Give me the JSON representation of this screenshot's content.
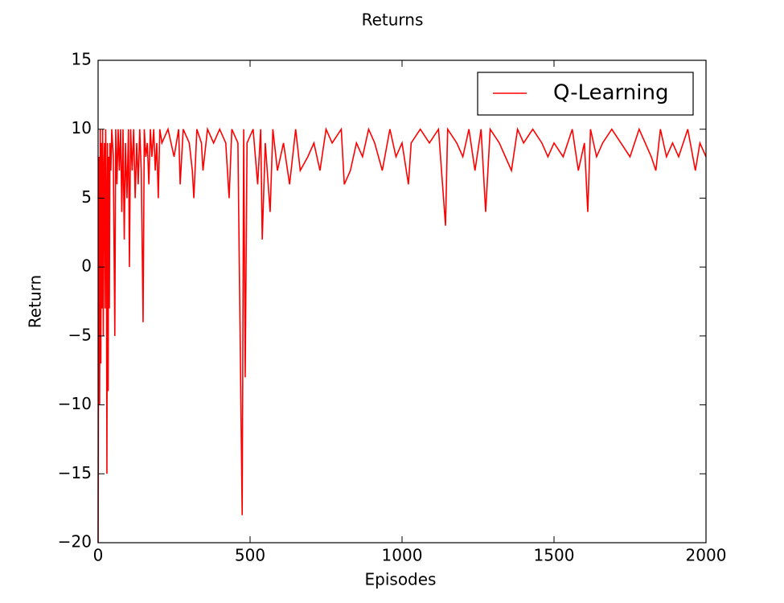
{
  "chart_data": {
    "type": "line",
    "title": "Returns",
    "x_label": "Episodes",
    "y_label": "Return",
    "xlim": [
      0,
      2000
    ],
    "ylim": [
      -20,
      15
    ],
    "xticks": [
      0,
      500,
      1000,
      1500,
      2000
    ],
    "yticks": [
      {
        "value": -20,
        "label": "−20"
      },
      {
        "value": -15,
        "label": "−15"
      },
      {
        "value": -10,
        "label": "−10"
      },
      {
        "value": -5,
        "label": "−5"
      },
      0,
      5,
      10,
      15
    ],
    "legend": "upper right",
    "x": [
      0,
      3,
      5,
      7,
      9,
      11,
      13,
      15,
      17,
      19,
      21,
      23,
      25,
      27,
      29,
      31,
      33,
      35,
      37,
      39,
      42,
      45,
      50,
      55,
      58,
      62,
      66,
      70,
      74,
      78,
      82,
      86,
      90,
      95,
      100,
      103,
      107,
      112,
      117,
      122,
      127,
      132,
      137,
      142,
      148,
      152,
      157,
      162,
      167,
      172,
      177,
      183,
      188,
      193,
      198,
      203,
      210,
      230,
      250,
      265,
      270,
      280,
      300,
      310,
      315,
      325,
      340,
      345,
      360,
      380,
      400,
      420,
      431,
      440,
      460,
      474,
      479,
      484,
      490,
      510,
      525,
      535,
      540,
      550,
      566,
      575,
      590,
      610,
      630,
      650,
      665,
      690,
      710,
      730,
      750,
      770,
      800,
      810,
      830,
      850,
      870,
      890,
      910,
      935,
      960,
      980,
      1000,
      1021,
      1030,
      1060,
      1090,
      1120,
      1143,
      1150,
      1180,
      1200,
      1220,
      1240,
      1260,
      1275,
      1290,
      1320,
      1340,
      1360,
      1380,
      1400,
      1430,
      1460,
      1480,
      1500,
      1530,
      1560,
      1580,
      1600,
      1611,
      1620,
      1640,
      1660,
      1690,
      1720,
      1750,
      1780,
      1800,
      1820,
      1835,
      1850,
      1870,
      1890,
      1910,
      1940,
      1965,
      1980,
      2000
    ],
    "series": [
      {
        "name": "Q-Learning",
        "color": "#ff0000",
        "values": [
          -20,
          8,
          -10,
          10,
          -7,
          9,
          -3,
          10,
          -5,
          7,
          9,
          -3,
          10,
          5,
          -15,
          9,
          -9,
          8,
          -3,
          9,
          7,
          10,
          8,
          -5,
          10,
          6,
          10,
          7,
          10,
          4,
          10,
          2,
          9,
          5,
          10,
          0,
          10,
          7,
          10,
          5,
          9,
          6,
          10,
          7,
          -4,
          10,
          8,
          9,
          6,
          10,
          8,
          10,
          7,
          9,
          5,
          10,
          9,
          10,
          8,
          10,
          6,
          10,
          9,
          7,
          5,
          10,
          9,
          7,
          10,
          9,
          10,
          9,
          5,
          10,
          9,
          -18,
          10,
          -8,
          9,
          10,
          6,
          10,
          2,
          9,
          4,
          10,
          7,
          9,
          6,
          10,
          7,
          8,
          9,
          7,
          10,
          9,
          10,
          6,
          7,
          9,
          8,
          10,
          9,
          7,
          10,
          8,
          9,
          6,
          9,
          10,
          9,
          10,
          3,
          10,
          9,
          8,
          10,
          7,
          10,
          4,
          10,
          9,
          8,
          7,
          10,
          9,
          10,
          9,
          8,
          9,
          8,
          10,
          7,
          9,
          4,
          10,
          8,
          9,
          10,
          9,
          8,
          10,
          9,
          8,
          7,
          10,
          8,
          9,
          8,
          10,
          7,
          9,
          8
        ]
      }
    ]
  }
}
